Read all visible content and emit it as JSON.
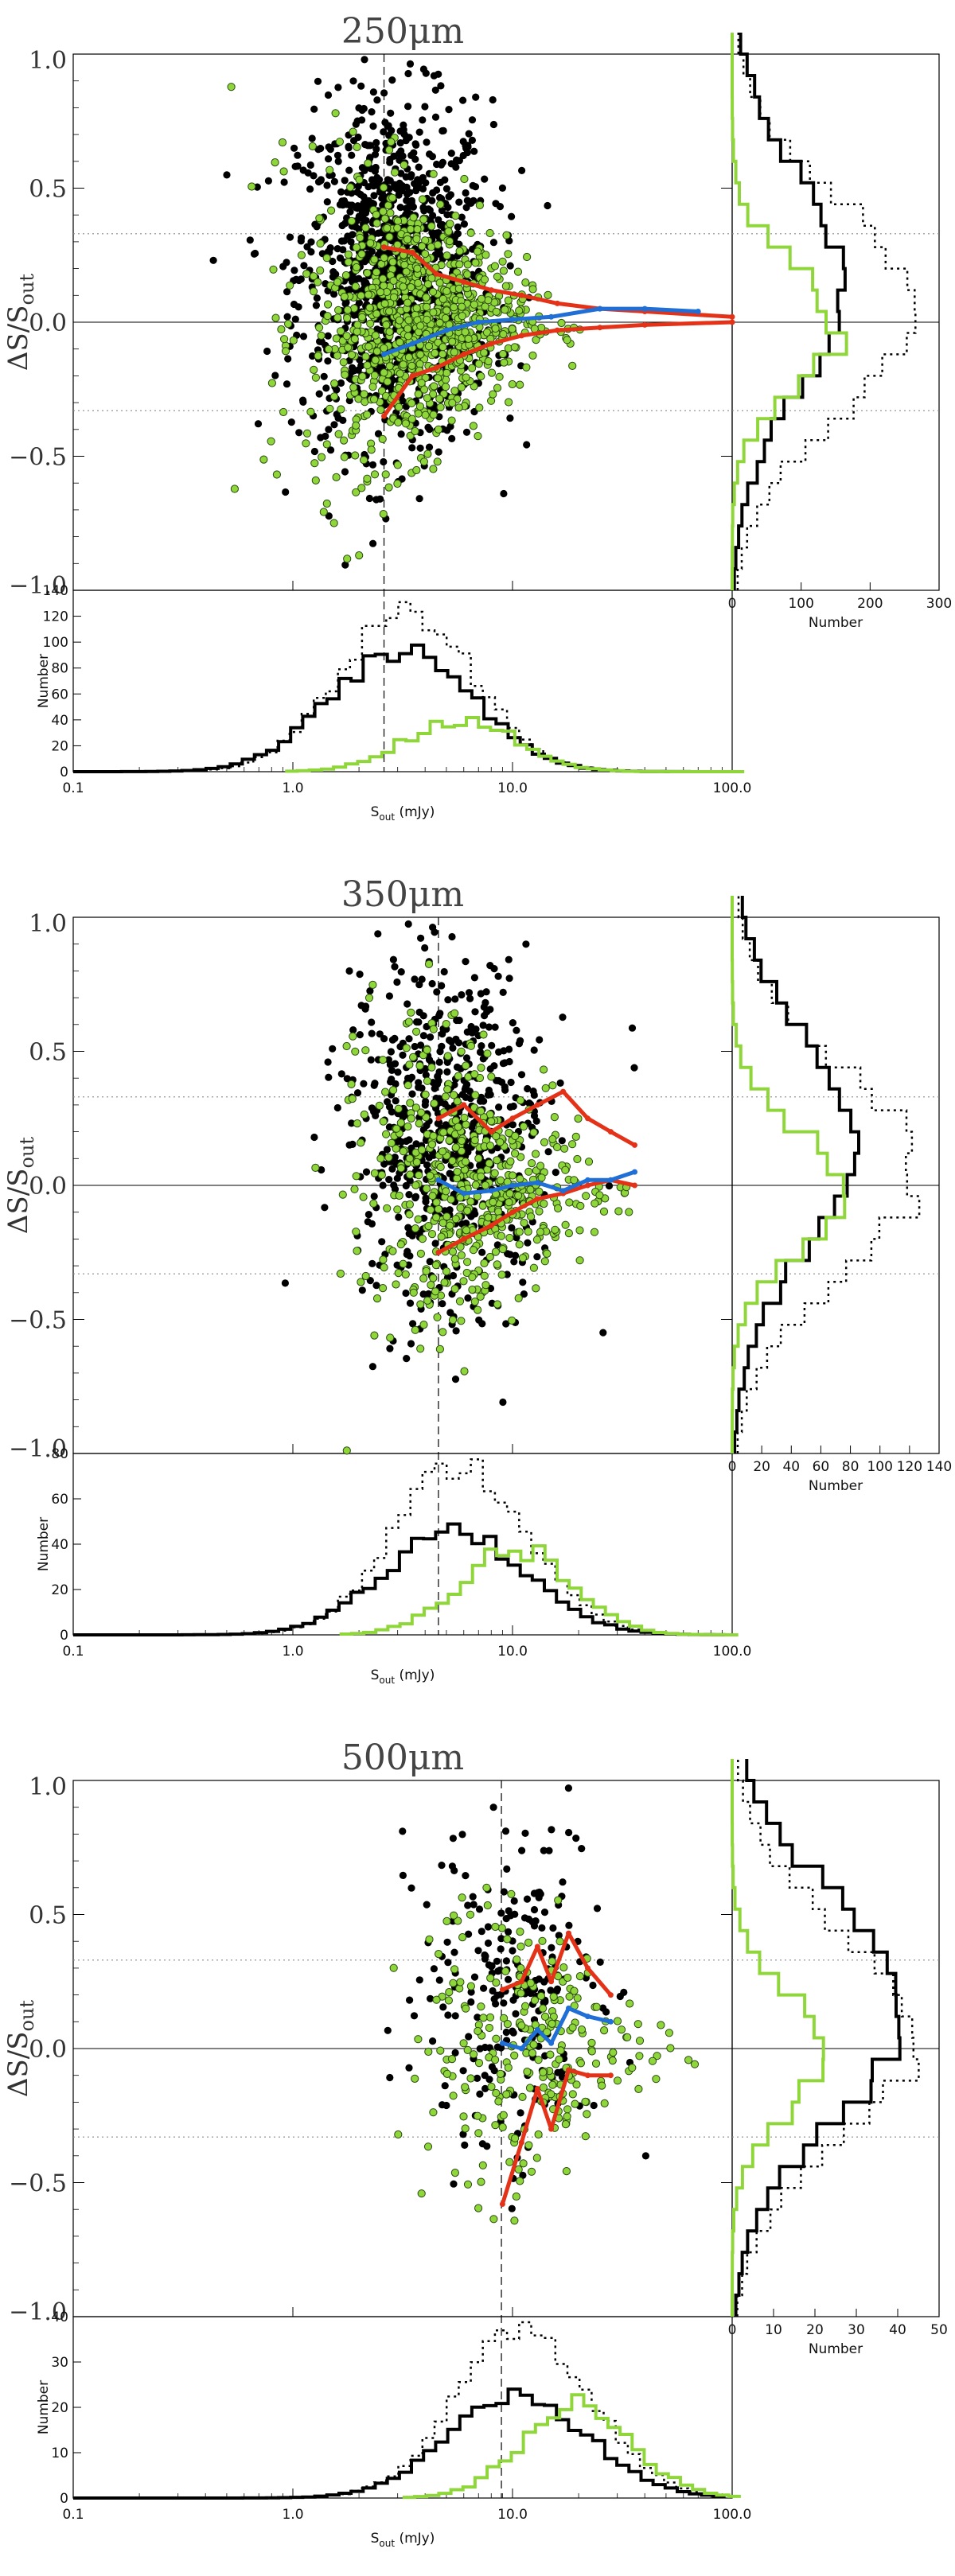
{
  "colors": {
    "black": "#000000",
    "green": "#8fd63b",
    "green_edge": "#2a4a10",
    "red": "#e43218",
    "blue": "#1f6fd6",
    "dotted": "#888888"
  },
  "chart_data": [
    {
      "type": "scatter",
      "title": "250μm",
      "ylabel_main": "ΔS/S",
      "ylabel_sub": "out",
      "xlabel_main": "S",
      "xlabel_sub": "out",
      "xlabel_unit": " (mJy)",
      "ylabel_hist": "Number",
      "xlabel_side": "Number",
      "ylim": [
        -1.0,
        1.0
      ],
      "xlim_log": [
        0.1,
        100.0
      ],
      "y_ticks": [
        "1.0",
        "0.5",
        "0.0",
        "−0.5",
        "−1.0"
      ],
      "x_ticks": [
        "0.1",
        "1.0",
        "10.0",
        "100.0"
      ],
      "hist_ylim": [
        0,
        140
      ],
      "hist_ticks": [
        "0",
        "20",
        "40",
        "60",
        "80",
        "100",
        "120",
        "140"
      ],
      "side_xlim": [
        0,
        300
      ],
      "side_ticks": [
        "0",
        "100",
        "200",
        "300"
      ],
      "completeness_mJy": 2.6,
      "dotted_levels": [
        0.33,
        -0.33
      ],
      "red_upper": [
        [
          2.6,
          0.28
        ],
        [
          3.5,
          0.26
        ],
        [
          4.5,
          0.18
        ],
        [
          6,
          0.15
        ],
        [
          8,
          0.12
        ],
        [
          11,
          0.1
        ],
        [
          16,
          0.07
        ],
        [
          25,
          0.05
        ],
        [
          40,
          0.04
        ],
        [
          100,
          0.02
        ]
      ],
      "red_lower": [
        [
          2.6,
          -0.35
        ],
        [
          3.5,
          -0.2
        ],
        [
          4.5,
          -0.17
        ],
        [
          6,
          -0.12
        ],
        [
          8,
          -0.08
        ],
        [
          11,
          -0.05
        ],
        [
          16,
          -0.03
        ],
        [
          25,
          -0.02
        ],
        [
          40,
          -0.01
        ],
        [
          100,
          0.0
        ]
      ],
      "blue_median": [
        [
          2.6,
          -0.12
        ],
        [
          3.5,
          -0.08
        ],
        [
          5,
          -0.03
        ],
        [
          7,
          0.0
        ],
        [
          10,
          0.01
        ],
        [
          15,
          0.02
        ],
        [
          25,
          0.05
        ],
        [
          40,
          0.05
        ],
        [
          70,
          0.04
        ]
      ],
      "hist_total_peak": 125,
      "hist_black_peak": 95,
      "hist_green_peak": 40,
      "side_dotted_peak": 270,
      "side_black_peak": 160,
      "side_green_peak": 155
    },
    {
      "type": "scatter",
      "title": "350μm",
      "ylabel_main": "ΔS/S",
      "ylabel_sub": "out",
      "xlabel_main": "S",
      "xlabel_sub": "out",
      "xlabel_unit": " (mJy)",
      "ylabel_hist": "Number",
      "xlabel_side": "Number",
      "ylim": [
        -1.0,
        1.0
      ],
      "xlim_log": [
        0.1,
        100.0
      ],
      "y_ticks": [
        "1.0",
        "0.5",
        "0.0",
        "−0.5",
        "−1.0"
      ],
      "x_ticks": [
        "0.1",
        "1.0",
        "10.0",
        "100.0"
      ],
      "hist_ylim": [
        0,
        80
      ],
      "hist_ticks": [
        "0",
        "20",
        "40",
        "60",
        "80"
      ],
      "side_xlim": [
        0,
        140
      ],
      "side_ticks": [
        "0",
        "20",
        "40",
        "60",
        "80",
        "100",
        "120",
        "140"
      ],
      "completeness_mJy": 4.6,
      "dotted_levels": [
        0.33,
        -0.33
      ],
      "red_upper": [
        [
          4.6,
          0.25
        ],
        [
          6,
          0.3
        ],
        [
          8,
          0.2
        ],
        [
          10,
          0.25
        ],
        [
          13,
          0.3
        ],
        [
          17,
          0.35
        ],
        [
          22,
          0.25
        ],
        [
          28,
          0.2
        ],
        [
          36,
          0.15
        ]
      ],
      "red_lower": [
        [
          4.6,
          -0.25
        ],
        [
          6,
          -0.2
        ],
        [
          8,
          -0.15
        ],
        [
          10,
          -0.1
        ],
        [
          13,
          -0.05
        ],
        [
          17,
          -0.03
        ],
        [
          22,
          0.0
        ],
        [
          28,
          0.02
        ],
        [
          36,
          0.0
        ]
      ],
      "blue_median": [
        [
          4.6,
          0.02
        ],
        [
          6,
          -0.03
        ],
        [
          8,
          -0.02
        ],
        [
          10,
          0.0
        ],
        [
          13,
          0.01
        ],
        [
          17,
          -0.02
        ],
        [
          22,
          0.02
        ],
        [
          28,
          0.02
        ],
        [
          36,
          0.05
        ]
      ],
      "hist_total_peak": 75,
      "hist_black_peak": 46,
      "hist_green_peak": 38,
      "side_dotted_peak": 125,
      "side_black_peak": 80,
      "side_green_peak": 80
    },
    {
      "type": "scatter",
      "title": "500μm",
      "ylabel_main": "ΔS/S",
      "ylabel_sub": "out",
      "xlabel_main": "S",
      "xlabel_sub": "out",
      "xlabel_unit": " (mJy)",
      "ylabel_hist": "Number",
      "xlabel_side": "Number",
      "ylim": [
        -1.0,
        1.0
      ],
      "xlim_log": [
        0.1,
        100.0
      ],
      "y_ticks": [
        "1.0",
        "0.5",
        "0.0",
        "−0.5",
        "−1.0"
      ],
      "x_ticks": [
        "0.1",
        "1.0",
        "10.0",
        "100.0"
      ],
      "hist_ylim": [
        0,
        40
      ],
      "hist_ticks": [
        "0",
        "10",
        "20",
        "30",
        "40"
      ],
      "side_xlim": [
        0,
        50
      ],
      "side_ticks": [
        "0",
        "10",
        "20",
        "30",
        "40",
        "50"
      ],
      "completeness_mJy": 8.9,
      "dotted_levels": [
        0.33,
        -0.33
      ],
      "red_upper": [
        [
          9,
          0.22
        ],
        [
          11,
          0.25
        ],
        [
          13,
          0.38
        ],
        [
          15,
          0.25
        ],
        [
          18,
          0.43
        ],
        [
          22,
          0.3
        ],
        [
          28,
          0.2
        ]
      ],
      "red_lower": [
        [
          9,
          -0.58
        ],
        [
          11,
          -0.35
        ],
        [
          13,
          -0.15
        ],
        [
          15,
          -0.3
        ],
        [
          18,
          -0.08
        ],
        [
          22,
          -0.1
        ],
        [
          28,
          -0.1
        ]
      ],
      "blue_median": [
        [
          9,
          0.02
        ],
        [
          11,
          0.0
        ],
        [
          13,
          0.07
        ],
        [
          15,
          0.02
        ],
        [
          18,
          0.15
        ],
        [
          22,
          0.12
        ],
        [
          28,
          0.1
        ]
      ],
      "hist_total_peak": 38,
      "hist_black_peak": 22,
      "hist_green_peak": 20,
      "side_dotted_peak": 45,
      "side_black_peak": 43,
      "side_green_peak": 22
    }
  ]
}
